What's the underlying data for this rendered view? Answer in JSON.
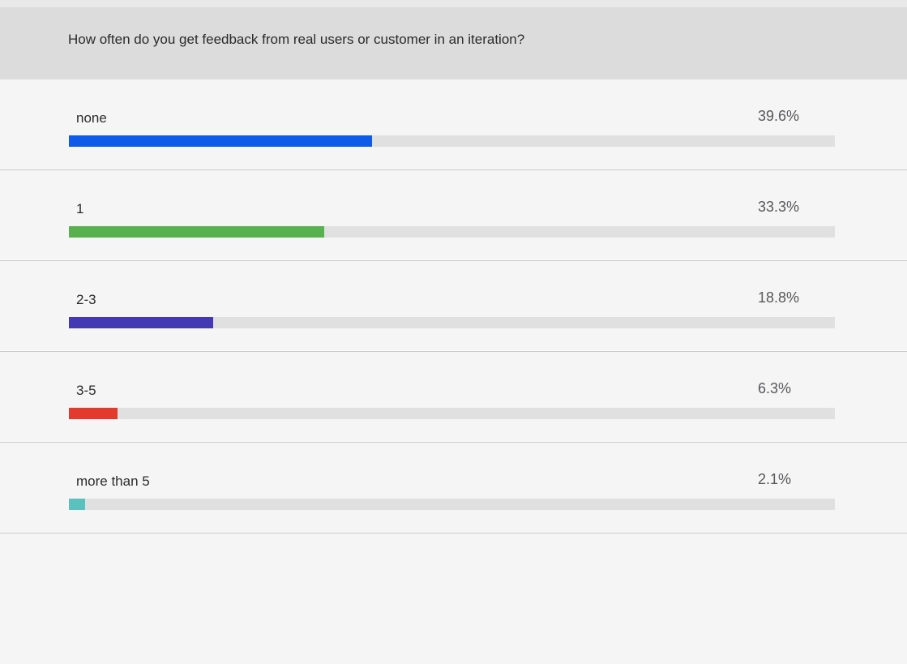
{
  "header": {
    "question": "How often do you get feedback from real users or customer in an iteration?"
  },
  "chart_data": {
    "type": "bar",
    "orientation": "horizontal",
    "title": "How often do you get feedback from real users or customer in an iteration?",
    "categories": [
      "none",
      "1",
      "2-3",
      "3-5",
      "more than 5"
    ],
    "values": [
      39.6,
      33.3,
      18.8,
      6.3,
      2.1
    ],
    "value_labels": [
      "39.6%",
      "33.3%",
      "18.8%",
      "6.3%",
      "2.1%"
    ],
    "unit": "percent",
    "xlim": [
      0,
      100
    ],
    "grid": false,
    "legend": "none",
    "bar_colors": [
      "#0e5ae9",
      "#56b14e",
      "#4438b4",
      "#e23b2e",
      "#5bc1be"
    ],
    "track_color": "#e0e0e0"
  },
  "colors": {
    "header_bg": "#dcdcdc",
    "top_strip_bg": "#e9e9e9",
    "body_bg": "#f5f5f5",
    "separator": "#c9c9c9",
    "question_text": "#2a2a2a",
    "category_text": "#2b2b2b",
    "percent_text": "#58585c"
  }
}
